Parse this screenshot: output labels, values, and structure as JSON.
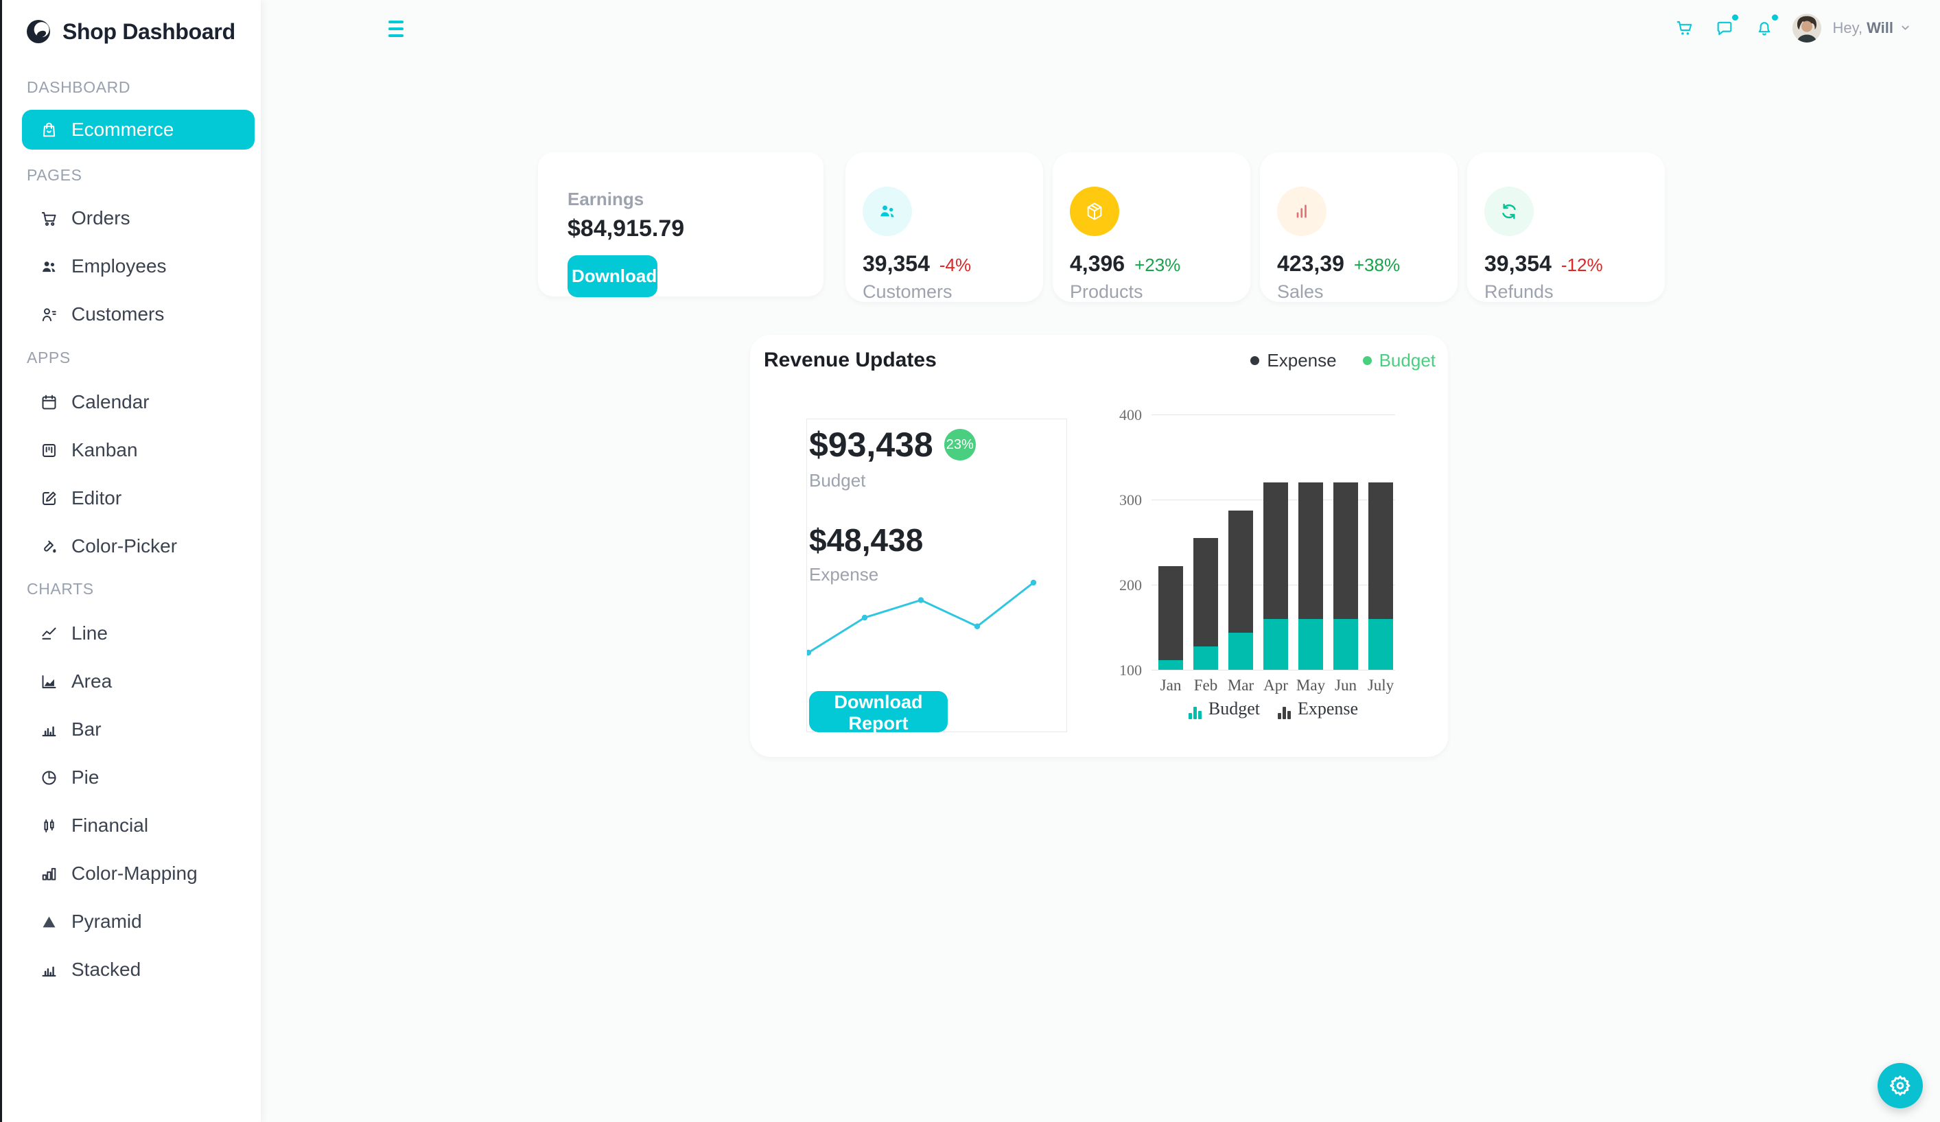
{
  "app": {
    "title": "Shop Dashboard"
  },
  "topbar": {
    "menu_icon": "hamburger-menu-icon",
    "actions": [
      {
        "name": "cart",
        "icon": "cart-icon",
        "badge": false
      },
      {
        "name": "chat",
        "icon": "chat-icon",
        "badge": true
      },
      {
        "name": "notifications",
        "icon": "bell-icon",
        "badge": true
      }
    ],
    "profile": {
      "greeting": "Hey,",
      "username": "Will"
    }
  },
  "sidebar": {
    "sections": [
      {
        "header": "DASHBOARD",
        "items": [
          {
            "label": "Ecommerce",
            "icon": "shopping-bag-icon",
            "active": true
          }
        ]
      },
      {
        "header": "PAGES",
        "items": [
          {
            "label": "Orders",
            "icon": "shopping-cart-icon"
          },
          {
            "label": "Employees",
            "icon": "employees-icon"
          },
          {
            "label": "Customers",
            "icon": "customer-list-icon"
          }
        ]
      },
      {
        "header": "APPS",
        "items": [
          {
            "label": "Calendar",
            "icon": "calendar-icon"
          },
          {
            "label": "Kanban",
            "icon": "kanban-icon"
          },
          {
            "label": "Editor",
            "icon": "editor-icon"
          },
          {
            "label": "Color-Picker",
            "icon": "color-picker-icon"
          }
        ]
      },
      {
        "header": "CHARTS",
        "items": [
          {
            "label": "Line",
            "icon": "line-chart-icon"
          },
          {
            "label": "Area",
            "icon": "area-chart-icon"
          },
          {
            "label": "Bar",
            "icon": "bar-chart-icon"
          },
          {
            "label": "Pie",
            "icon": "pie-chart-icon"
          },
          {
            "label": "Financial",
            "icon": "financial-chart-icon"
          },
          {
            "label": "Color-Mapping",
            "icon": "color-mapping-icon"
          },
          {
            "label": "Pyramid",
            "icon": "pyramid-chart-icon"
          },
          {
            "label": "Stacked",
            "icon": "stacked-chart-icon"
          }
        ]
      }
    ]
  },
  "earnings": {
    "label": "Earnings",
    "value": "$84,915.79",
    "button_label": "Download"
  },
  "stats": [
    {
      "label": "Customers",
      "value": "39,354",
      "delta": "-4%",
      "delta_color": "#DC2626",
      "icon": "customers-group-icon",
      "icon_color": "#03C9D7",
      "icon_bg": "#E5FAFB"
    },
    {
      "label": "Products",
      "value": "4,396",
      "delta": "+23%",
      "delta_color": "#16A34A",
      "icon": "box-icon",
      "icon_color": "#FFFFFF",
      "icon_bg": "#FEC90F"
    },
    {
      "label": "Sales",
      "value": "423,39",
      "delta": "+38%",
      "delta_color": "#16A34A",
      "icon": "sales-bars-icon",
      "icon_color": "#E46E76",
      "icon_bg": "#FFF4E5"
    },
    {
      "label": "Refunds",
      "value": "39,354",
      "delta": "-12%",
      "delta_color": "#DC2626",
      "icon": "refresh-icon",
      "icon_color": "#00C292",
      "icon_bg": "#EBFAF2"
    }
  ],
  "revenue": {
    "title": "Revenue Updates",
    "legend": [
      {
        "label": "Expense",
        "color": "#33373E"
      },
      {
        "label": "Budget",
        "color": "#47D07E"
      }
    ],
    "budget": {
      "value": "$93,438",
      "badge": "23%",
      "badge_color": "#4ACF81",
      "label": "Budget"
    },
    "expense": {
      "value": "$48,438",
      "label": "Expense"
    },
    "button_label": "Download Report"
  },
  "fab": {
    "icon": "gear-icon",
    "color": "#09C1D0"
  },
  "theme": {
    "primary": "#03C9D7",
    "page_bg": "#FAFBFB"
  },
  "chart_data": [
    {
      "type": "line",
      "name": "revenue-sparkline",
      "x": [
        1,
        2,
        3,
        4,
        5
      ],
      "values": [
        2,
        6,
        8,
        5,
        10
      ],
      "color": "#2EC6E0"
    },
    {
      "type": "bar",
      "name": "budget-expense-stacked",
      "stacked": true,
      "categories": [
        "Jan",
        "Feb",
        "Mar",
        "Apr",
        "May",
        "Jun",
        "July"
      ],
      "series": [
        {
          "name": "Budget",
          "values": [
            111.1,
            127.3,
            143.4,
            159.9,
            159.9,
            159.9,
            159.9
          ],
          "color": "#00BDAE"
        },
        {
          "name": "Expense",
          "values": [
            111.1,
            127.3,
            143.4,
            159.9,
            159.9,
            159.9,
            159.9
          ],
          "color": "#404041"
        }
      ],
      "ylim": [
        100,
        400
      ],
      "yticks": [
        100,
        200,
        300,
        400
      ],
      "grid": true,
      "legend_position": "bottom"
    }
  ]
}
